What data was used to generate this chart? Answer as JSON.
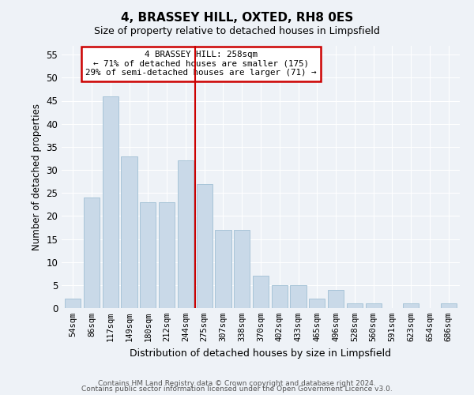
{
  "title": "4, BRASSEY HILL, OXTED, RH8 0ES",
  "subtitle": "Size of property relative to detached houses in Limpsfield",
  "xlabel": "Distribution of detached houses by size in Limpsfield",
  "ylabel": "Number of detached properties",
  "categories": [
    "54sqm",
    "86sqm",
    "117sqm",
    "149sqm",
    "180sqm",
    "212sqm",
    "244sqm",
    "275sqm",
    "307sqm",
    "338sqm",
    "370sqm",
    "402sqm",
    "433sqm",
    "465sqm",
    "496sqm",
    "528sqm",
    "560sqm",
    "591sqm",
    "623sqm",
    "654sqm",
    "686sqm"
  ],
  "values": [
    2,
    24,
    46,
    33,
    23,
    23,
    32,
    27,
    17,
    17,
    7,
    5,
    5,
    2,
    4,
    1,
    1,
    0,
    1,
    0,
    1
  ],
  "bar_color": "#c9d9e8",
  "bar_edge_color": "#a8c4d8",
  "vline_x": 6.5,
  "vline_color": "#cc0000",
  "annotation_line1": "4 BRASSEY HILL: 258sqm",
  "annotation_line2": "← 71% of detached houses are smaller (175)",
  "annotation_line3": "29% of semi-detached houses are larger (71) →",
  "annotation_box_color": "#ffffff",
  "annotation_box_edge": "#cc0000",
  "ylim": [
    0,
    57
  ],
  "yticks": [
    0,
    5,
    10,
    15,
    20,
    25,
    30,
    35,
    40,
    45,
    50,
    55
  ],
  "footer_line1": "Contains HM Land Registry data © Crown copyright and database right 2024.",
  "footer_line2": "Contains public sector information licensed under the Open Government Licence v3.0.",
  "background_color": "#eef2f7",
  "plot_background": "#eef2f7"
}
